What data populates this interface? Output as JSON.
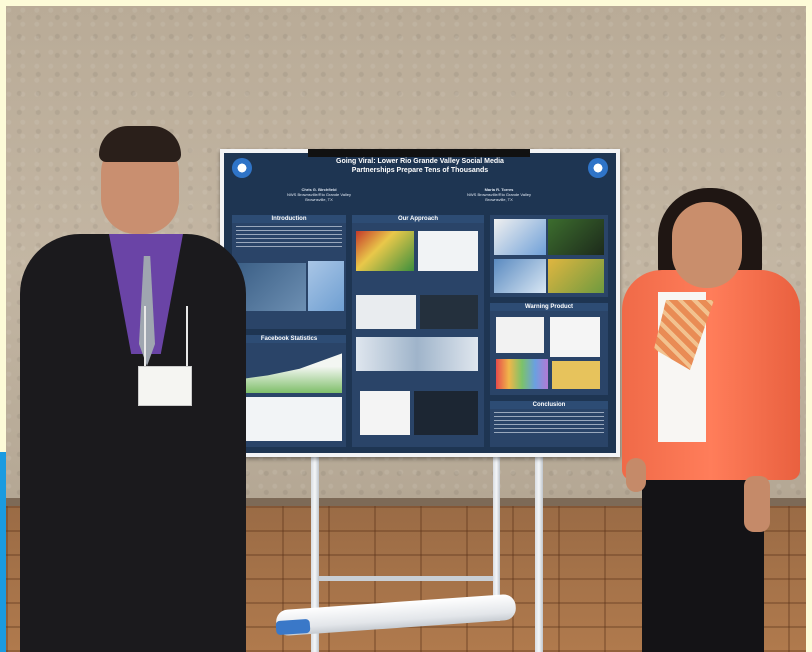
{
  "photo": {
    "scene": "",
    "poster": {
      "title_line1": "Going Viral: Lower Rio Grande Valley Social Media",
      "title_line2": "Partnerships Prepare Tens of Thousands",
      "author_left_name": "Chris G. Birchfield",
      "author_left_org": "NWS Brownsville/Rio Grande Valley",
      "author_left_loc": "Brownsville, TX",
      "author_right_name": "Maria R. Torres",
      "author_right_org": "NWS Brownsville/Rio Grande Valley",
      "author_right_loc": "Brownsville, TX",
      "section_intro": "Introduction",
      "section_approach": "Our Approach",
      "section_facebook": "Facebook Statistics",
      "section_warning": "Warning Product",
      "section_conclusion": "Conclusion"
    }
  },
  "colors": {
    "page_border": "#fdfbd8",
    "poster_bg": "#1e3552",
    "jacket": "#ff7d5a",
    "shirt": "#6a44a6"
  }
}
